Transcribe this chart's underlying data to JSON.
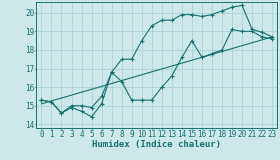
{
  "xlabel": "Humidex (Indice chaleur)",
  "ylabel": "",
  "bg_color": "#cce8e8",
  "line_color": "#1a7070",
  "grid_color": "#aad4d4",
  "xlim": [
    -0.5,
    23.5
  ],
  "ylim": [
    13.8,
    20.6
  ],
  "yticks": [
    14,
    15,
    16,
    17,
    18,
    19,
    20
  ],
  "xticks": [
    0,
    1,
    2,
    3,
    4,
    5,
    6,
    7,
    8,
    9,
    10,
    11,
    12,
    13,
    14,
    15,
    16,
    17,
    18,
    19,
    20,
    21,
    22,
    23
  ],
  "line1_x": [
    0,
    1,
    2,
    3,
    4,
    5,
    6,
    7,
    8,
    9,
    10,
    11,
    12,
    13,
    14,
    15,
    16,
    17,
    18,
    19,
    20,
    21,
    22,
    23
  ],
  "line1_y": [
    15.3,
    15.2,
    14.6,
    14.9,
    14.7,
    14.4,
    15.1,
    16.8,
    16.3,
    15.3,
    15.3,
    15.3,
    16.0,
    16.6,
    17.6,
    18.5,
    17.6,
    17.8,
    18.0,
    19.1,
    19.0,
    19.0,
    18.7,
    18.6
  ],
  "line2_x": [
    0,
    1,
    2,
    3,
    4,
    5,
    6,
    7,
    8,
    9,
    10,
    11,
    12,
    13,
    14,
    15,
    16,
    17,
    18,
    19,
    20,
    21,
    22,
    23
  ],
  "line2_y": [
    15.3,
    15.2,
    14.6,
    15.0,
    15.0,
    14.9,
    15.5,
    16.8,
    17.5,
    17.5,
    18.5,
    19.3,
    19.6,
    19.6,
    19.9,
    19.9,
    19.8,
    19.9,
    20.1,
    20.3,
    20.4,
    19.1,
    18.95,
    18.7
  ],
  "line3_x": [
    0,
    23
  ],
  "line3_y": [
    15.1,
    18.7
  ]
}
